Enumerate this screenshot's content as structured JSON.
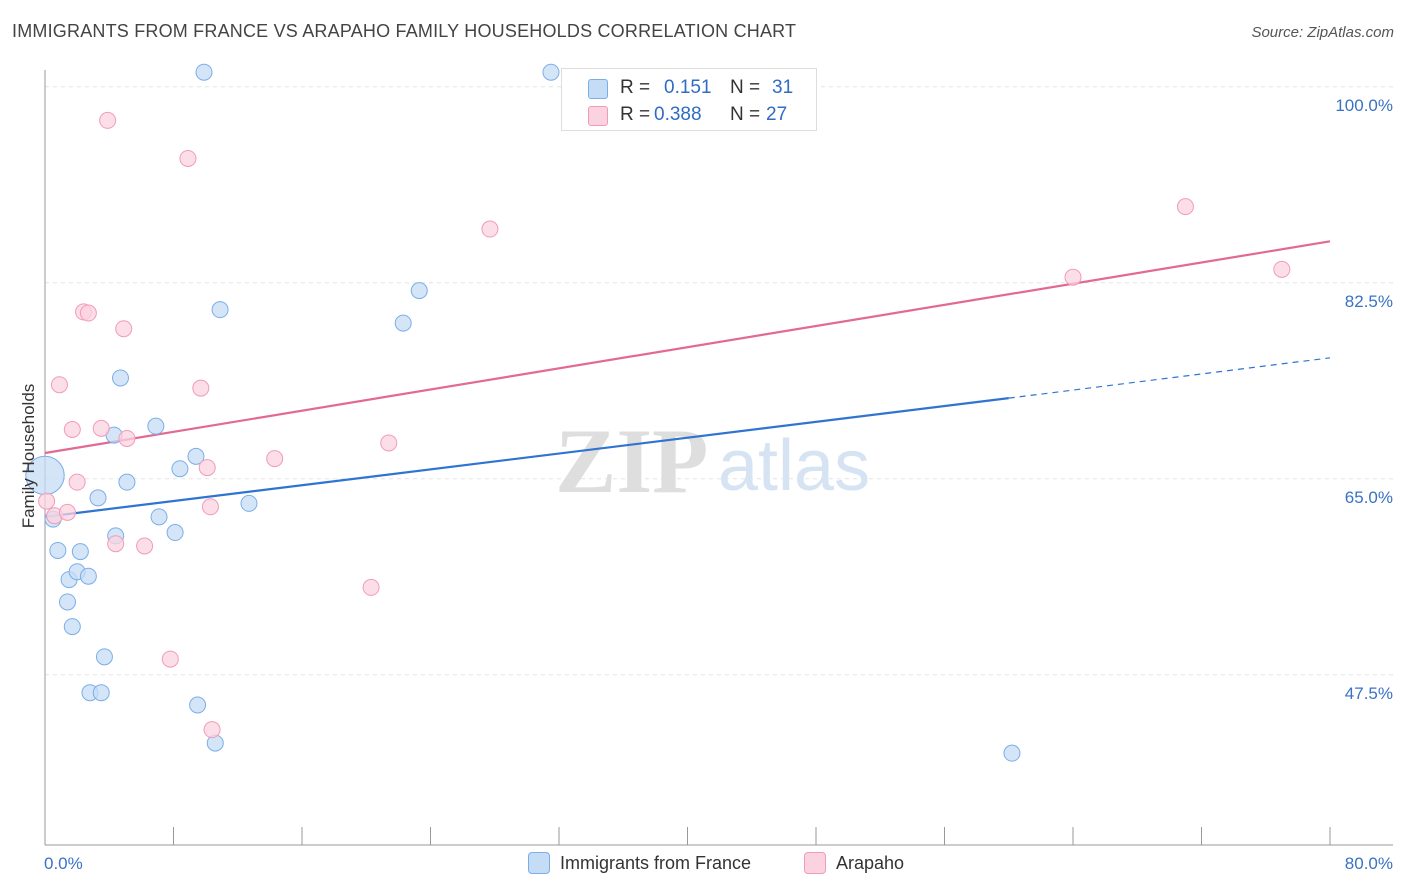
{
  "title": "IMMIGRANTS FROM FRANCE VS ARAPAHO FAMILY HOUSEHOLDS CORRELATION CHART",
  "source": "Source: ZipAtlas.com",
  "watermark": {
    "zip": "ZIP",
    "atlas": "atlas"
  },
  "legend_stats": [
    {
      "r_label": "R =",
      "r_value": "0.151",
      "n_label": "N =",
      "n_value": "31",
      "color": "#7baee8",
      "fill": "#c5dcf6"
    },
    {
      "r_label": "R =",
      "r_value": "0.388",
      "n_label": "N =",
      "n_value": "27",
      "color": "#f29bb8",
      "fill": "#fbd3e0"
    }
  ],
  "bottom_legend": [
    {
      "label": "Immigrants from France",
      "color": "#7baee8",
      "fill": "#c5dcf6"
    },
    {
      "label": "Arapaho",
      "color": "#f29bb8",
      "fill": "#fbd3e0"
    }
  ],
  "chart_data": {
    "type": "scatter",
    "title": "IMMIGRANTS FROM FRANCE VS ARAPAHO FAMILY HOUSEHOLDS CORRELATION CHART",
    "xlabel": "",
    "ylabel": "Family Households",
    "xlim": [
      0,
      80
    ],
    "ylim": [
      32.3,
      101.5
    ],
    "x_tick_labels": [
      "0.0%",
      "80.0%"
    ],
    "y_ticks": [
      47.5,
      65.0,
      82.5,
      100.0
    ],
    "y_tick_labels": [
      "47.5%",
      "65.0%",
      "82.5%",
      "100.0%"
    ],
    "grid": true,
    "series": [
      {
        "name": "Immigrants from France",
        "color": "#2f74d0",
        "points": [
          [
            0.0,
            65.3,
            2.4
          ],
          [
            0.5,
            61.4,
            1
          ],
          [
            0.8,
            58.6,
            1
          ],
          [
            1.5,
            56.0,
            1
          ],
          [
            1.4,
            54.0,
            1
          ],
          [
            1.7,
            51.8,
            1
          ],
          [
            2.0,
            56.7,
            1
          ],
          [
            2.2,
            58.5,
            1
          ],
          [
            2.7,
            56.3,
            1
          ],
          [
            3.3,
            63.3,
            1
          ],
          [
            3.7,
            49.1,
            1
          ],
          [
            2.8,
            45.9,
            1
          ],
          [
            3.5,
            45.9,
            1
          ],
          [
            4.3,
            68.9,
            1
          ],
          [
            4.4,
            59.9,
            1
          ],
          [
            4.7,
            74.0,
            1
          ],
          [
            5.1,
            64.7,
            1
          ],
          [
            6.9,
            69.7,
            1
          ],
          [
            7.1,
            61.6,
            1
          ],
          [
            8.1,
            60.2,
            1
          ],
          [
            8.4,
            65.9,
            1
          ],
          [
            9.4,
            67.0,
            1
          ],
          [
            9.5,
            44.8,
            1
          ],
          [
            9.9,
            101.3,
            1
          ],
          [
            10.6,
            41.4,
            1
          ],
          [
            10.9,
            80.1,
            1
          ],
          [
            12.7,
            62.8,
            1
          ],
          [
            22.3,
            78.9,
            1
          ],
          [
            23.3,
            81.8,
            1
          ],
          [
            31.5,
            101.3,
            1
          ],
          [
            60.2,
            40.5,
            1
          ]
        ],
        "trend": {
          "x1": 0,
          "y1": 61.6,
          "x2": 60.0,
          "y2": 72.2,
          "dash_x2": 80.0,
          "dash_y2": 75.8
        }
      },
      {
        "name": "Arapaho",
        "color": "#e26a92",
        "points": [
          [
            0.1,
            63.0,
            1
          ],
          [
            0.6,
            61.7,
            1
          ],
          [
            1.4,
            62.0,
            1
          ],
          [
            0.9,
            73.4,
            1
          ],
          [
            1.7,
            69.4,
            1
          ],
          [
            2.0,
            64.7,
            1
          ],
          [
            2.4,
            79.9,
            1
          ],
          [
            2.7,
            79.8,
            1
          ],
          [
            3.5,
            69.5,
            1
          ],
          [
            3.9,
            97.0,
            1
          ],
          [
            4.4,
            59.2,
            1
          ],
          [
            4.9,
            78.4,
            1
          ],
          [
            5.1,
            68.6,
            1
          ],
          [
            6.2,
            59.0,
            1
          ],
          [
            7.8,
            48.9,
            1
          ],
          [
            8.9,
            93.6,
            1
          ],
          [
            9.7,
            73.1,
            1
          ],
          [
            10.1,
            66.0,
            1
          ],
          [
            10.3,
            62.5,
            1
          ],
          [
            10.4,
            42.6,
            1
          ],
          [
            14.3,
            66.8,
            1
          ],
          [
            20.3,
            55.3,
            1
          ],
          [
            21.4,
            68.2,
            1
          ],
          [
            27.7,
            87.3,
            1
          ],
          [
            64.0,
            83.0,
            1
          ],
          [
            71.0,
            89.3,
            1
          ],
          [
            77.0,
            83.7,
            1
          ]
        ],
        "trend": {
          "x1": 0,
          "y1": 67.3,
          "x2": 80.0,
          "y2": 86.2
        }
      }
    ]
  }
}
